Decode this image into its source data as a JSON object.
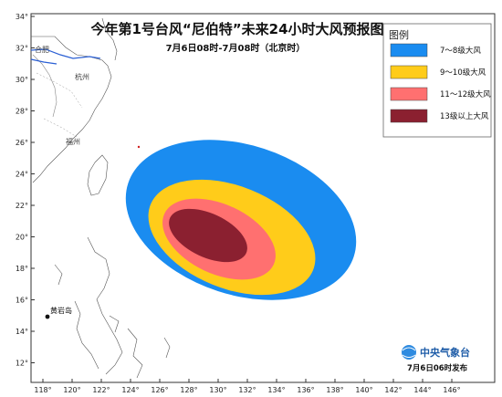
{
  "map": {
    "title": "今年第1号台风“尼伯特”未来24小时大风预报图",
    "subtitle": "7月6日08时-7月08时（北京时）",
    "lon_ticks": [
      "118°",
      "120°",
      "122°",
      "124°",
      "126°",
      "128°",
      "130°",
      "132°",
      "134°",
      "136°",
      "138°",
      "140°",
      "142°",
      "144°",
      "146°"
    ],
    "lat_ticks": [
      "34°",
      "32°",
      "30°",
      "28°",
      "26°",
      "24°",
      "22°",
      "20°",
      "18°",
      "16°",
      "14°",
      "12°"
    ],
    "places": {
      "hefei": "合肥",
      "hangzhou": "杭州",
      "fuzhou": "福州",
      "huangyan": "黄岩岛"
    },
    "legend": {
      "title": "图例",
      "items": [
        {
          "label": "7～8级大风",
          "color": "#1a8cf0"
        },
        {
          "label": "9～10级大风",
          "color": "#ffcc1a"
        },
        {
          "label": "11～12级大风",
          "color": "#ff7070"
        },
        {
          "label": "13级以上大风",
          "color": "#8b2030"
        }
      ]
    },
    "logo_text": "中央气象台",
    "issue_time": "7月6日06时发布"
  }
}
